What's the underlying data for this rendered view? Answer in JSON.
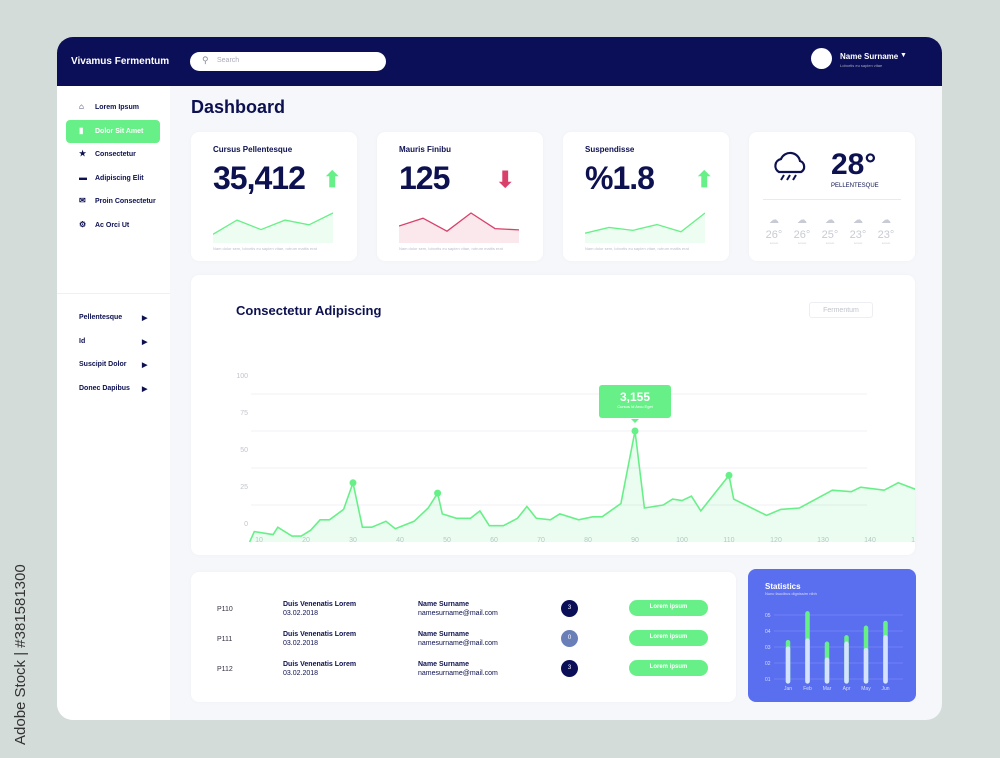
{
  "header": {
    "brand": "Vivamus Fermentum",
    "search_placeholder": "Search",
    "user_name": "Name Surname",
    "user_sub": "Lobortis eu sapien vitae"
  },
  "sidebar": {
    "items": [
      {
        "label": "Lorem Ipsum",
        "icon": "home-icon",
        "glyph": "⌂",
        "active": false
      },
      {
        "label": "Dolor Sit Amet",
        "icon": "bar-chart-icon",
        "glyph": "▮",
        "active": true
      },
      {
        "label": "Consectetur",
        "icon": "star-icon",
        "glyph": "★",
        "active": false
      },
      {
        "label": "Adipiscing Elit",
        "icon": "chat-icon",
        "glyph": "▬",
        "active": false
      },
      {
        "label": "Proin Consectetur",
        "icon": "mail-icon",
        "glyph": "✉",
        "active": false
      },
      {
        "label": "Ac Orci Ut",
        "icon": "settings-icon",
        "glyph": "⚙",
        "active": false
      }
    ],
    "sections": [
      "Pellentesque",
      "Id",
      "Suscipit Dolor",
      "Donec Dapibus"
    ]
  },
  "page_title": "Dashboard",
  "kpis": [
    {
      "label": "Cursus Pellentesque",
      "value": "35,412",
      "trend": "up",
      "color": "#68f088",
      "spark": [
        2,
        8,
        4,
        8,
        6,
        11
      ],
      "note": "Nam dolor sem, lobortis eu sapien vitae, rutrum mattis erat"
    },
    {
      "label": "Mauris Finibu",
      "value": "125",
      "trend": "down",
      "color": "#d9416a",
      "spark": [
        5,
        8,
        3,
        10,
        4,
        3.5
      ],
      "note": "Nam dolor sem, lobortis eu sapien vitae, rutrum mattis erat"
    },
    {
      "label": "Suspendisse",
      "value": "%1.8",
      "trend": "up",
      "color": "#68f088",
      "spark": [
        2,
        4,
        3,
        5,
        2.5,
        9
      ],
      "note": "Nam dolor sem, lobortis eu sapien vitae, rutrum mattis erat"
    }
  ],
  "weather": {
    "temp": "28°",
    "label": "PELLENTESQUE",
    "forecast": [
      {
        "temp": "26°",
        "day": "Lorem"
      },
      {
        "temp": "26°",
        "day": "Lorem"
      },
      {
        "temp": "25°",
        "day": "Lorem"
      },
      {
        "temp": "23°",
        "day": "Lorem"
      },
      {
        "temp": "23°",
        "day": "Lorem"
      }
    ]
  },
  "main_chart": {
    "title": "Consectetur Adipiscing",
    "filter_label": "Fermentum",
    "tooltip_value": "3,155",
    "tooltip_label": "Cursus Id Arcu Eget"
  },
  "chart_data": {
    "type": "area",
    "title": "Consectetur Adipiscing",
    "xlim": [
      8,
      151
    ],
    "ylim": [
      0,
      100
    ],
    "xticks": [
      10,
      20,
      30,
      40,
      50,
      60,
      70,
      80,
      90,
      100,
      110,
      120,
      130,
      140,
      150
    ],
    "yticks": [
      0,
      25,
      50,
      75,
      100
    ],
    "grid": true,
    "color": "#68f088",
    "x": [
      8,
      9,
      13,
      14,
      17,
      19,
      21,
      23,
      25,
      28,
      30,
      32,
      34,
      37,
      39,
      43,
      46,
      48,
      49,
      52,
      55,
      57,
      59,
      62,
      65,
      67,
      69,
      72,
      74,
      76,
      78,
      81,
      83,
      87,
      90,
      92,
      96,
      98,
      100,
      102,
      104,
      110,
      111,
      118,
      121,
      125,
      132,
      136,
      138,
      143,
      146,
      151
    ],
    "y": [
      0,
      7,
      5,
      10,
      4,
      4,
      8,
      15,
      15,
      22,
      40,
      10,
      10,
      14,
      9,
      14,
      23,
      33,
      19,
      16,
      16,
      21,
      11,
      11,
      16,
      24,
      16,
      15,
      19,
      17,
      15,
      17,
      17,
      26,
      75,
      23,
      25,
      29,
      28,
      31,
      21,
      45,
      29,
      18,
      22,
      23,
      35,
      34,
      37,
      35,
      40,
      34
    ],
    "markers": [
      30,
      48,
      90,
      110
    ]
  },
  "table": {
    "rows": [
      {
        "id": "P110",
        "title": "Duis Venenatis Lorem",
        "date": "03.02.2018",
        "name": "Name Surname",
        "email": "namesurname@mail.com",
        "count": "3",
        "count_color": "#0b0f57",
        "action": "Lorem ipsum"
      },
      {
        "id": "P111",
        "title": "Duis Venenatis Lorem",
        "date": "03.02.2018",
        "name": "Name Surname",
        "email": "namesurname@mail.com",
        "count": "0",
        "count_color": "#6a7fb8",
        "action": "Lorem ipsum"
      },
      {
        "id": "P112",
        "title": "Duis Venenatis Lorem",
        "date": "03.02.2018",
        "name": "Name Surname",
        "email": "namesurname@mail.com",
        "count": "3",
        "count_color": "#0b0f57",
        "action": "Lorem ipsum"
      }
    ]
  },
  "statistics": {
    "title": "Statistics",
    "subtitle": "Nunc faucibus dignissim nibh",
    "chart_data": {
      "type": "bar",
      "categories": [
        "Jan",
        "Feb",
        "Mar",
        "Apr",
        "May",
        "Jun"
      ],
      "yticks": [
        "01",
        "02",
        "03",
        "04",
        "05"
      ],
      "ylim": [
        1,
        5
      ],
      "series": [
        {
          "values": [
            2.9,
            3.4,
            2.2,
            3.2,
            2.8,
            3.6
          ],
          "color": "#d6e3ff"
        },
        {
          "values": [
            3.3,
            5.1,
            3.2,
            3.6,
            4.2,
            4.5
          ],
          "color": "#68f088"
        }
      ]
    }
  },
  "watermark": "Adobe Stock | #381581300"
}
